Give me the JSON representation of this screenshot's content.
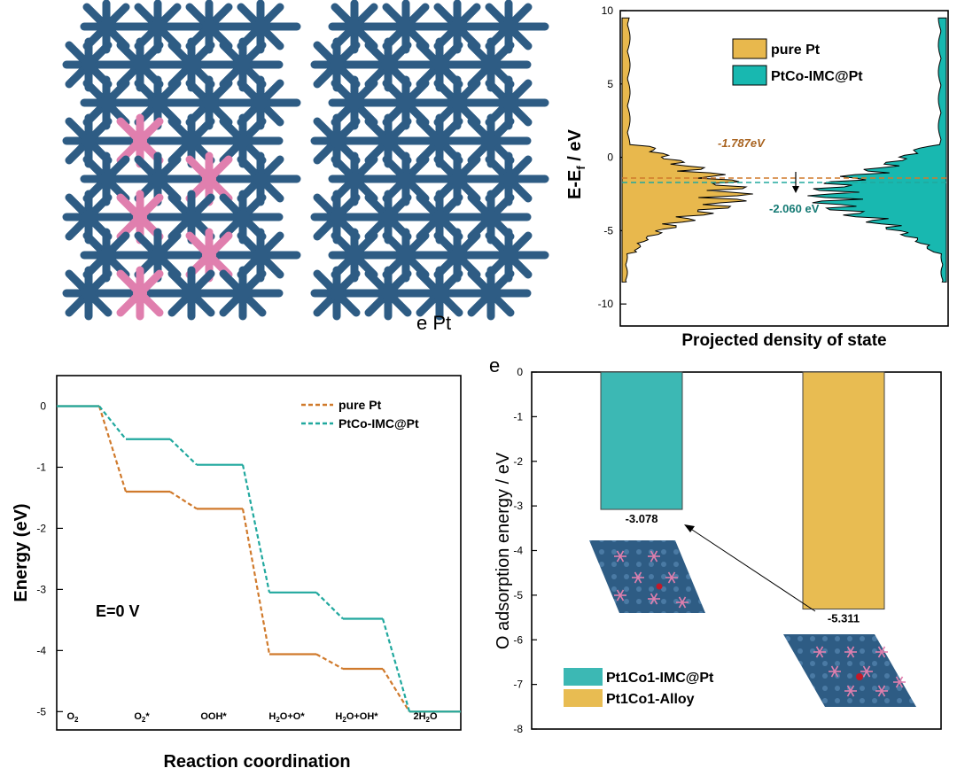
{
  "colors": {
    "pt_blue": "#2e5c84",
    "co_pink": "#e07fae",
    "pure_pt_gold": "#e8b84d",
    "ptco_teal": "#18b8b0",
    "pure_pt_line": "#d07a2c",
    "ptco_line": "#20a89e",
    "alloy_bar": "#e8bc52",
    "imc_bar": "#3cb8b4"
  },
  "panel_a": {
    "caption_fragment": "e Pt"
  },
  "panel_dos": {
    "ylabel": "E-E",
    "ylabel_sub": "f",
    "ylabel_unit": " / eV",
    "xlabel": "Projected density of state",
    "legend": [
      "pure Pt",
      "PtCo-IMC@Pt"
    ],
    "annotation_pt": "-1.787eV",
    "annotation_ptco": "-2.060 eV",
    "yticks": [
      "10",
      "5",
      "0",
      "-5",
      "-10"
    ]
  },
  "panel_energy": {
    "ylabel": "Energy (eV)",
    "xlabel": "Reaction coordination",
    "condition": "E=0 V",
    "legend": [
      "pure Pt",
      "PtCo-IMC@Pt"
    ],
    "yticks": [
      "0",
      "-1",
      "-2",
      "-3",
      "-4",
      "-5"
    ],
    "step_labels": [
      {
        "main": "O",
        "sub": "2",
        "tail": ""
      },
      {
        "main": "O",
        "sub": "2",
        "tail": "*"
      },
      {
        "main": "OOH*",
        "sub": "",
        "tail": ""
      },
      {
        "main": "H",
        "sub": "2",
        "tail": "O+O*"
      },
      {
        "main": "H",
        "sub": "2",
        "tail": "O+OH*"
      },
      {
        "main": "2H",
        "sub": "2",
        "tail": "O"
      }
    ]
  },
  "panel_e": {
    "letter": "e",
    "ylabel": "O adsorption energy / eV",
    "yticks": [
      "0",
      "-1",
      "-2",
      "-3",
      "-4",
      "-5",
      "-6",
      "-7",
      "-8"
    ],
    "legend": [
      "Pt1Co1-IMC@Pt",
      "Pt1Co1-Alloy"
    ],
    "bar_labels": [
      "-3.078",
      "-5.311"
    ]
  },
  "chart_data": [
    {
      "type": "area",
      "title": "",
      "ylabel": "E-Ef / eV",
      "xlabel": "Projected density of state",
      "ylim": [
        -11.5,
        10
      ],
      "series": [
        {
          "name": "pure Pt",
          "d_band_center": -1.787
        },
        {
          "name": "PtCo-IMC@Pt",
          "d_band_center": -2.06
        }
      ]
    },
    {
      "type": "line",
      "title": "",
      "xlabel": "Reaction coordination",
      "ylabel": "Energy (eV)",
      "categories": [
        "O2",
        "O2*",
        "OOH*",
        "H2O+O*",
        "H2O+OH*",
        "2H2O"
      ],
      "ylim": [
        -5.3,
        0.5
      ],
      "series": [
        {
          "name": "pure Pt",
          "values": [
            0,
            -1.4,
            -1.68,
            -4.06,
            -4.3,
            -5.0
          ]
        },
        {
          "name": "PtCo-IMC@Pt",
          "values": [
            0,
            -0.54,
            -0.96,
            -3.05,
            -3.48,
            -5.0
          ]
        }
      ]
    },
    {
      "type": "bar",
      "title": "",
      "ylabel": "O adsorption energy / eV",
      "categories": [
        "Pt1Co1-IMC@Pt",
        "Pt1Co1-Alloy"
      ],
      "values": [
        -3.078,
        -5.311
      ],
      "ylim": [
        -8,
        0
      ]
    }
  ]
}
